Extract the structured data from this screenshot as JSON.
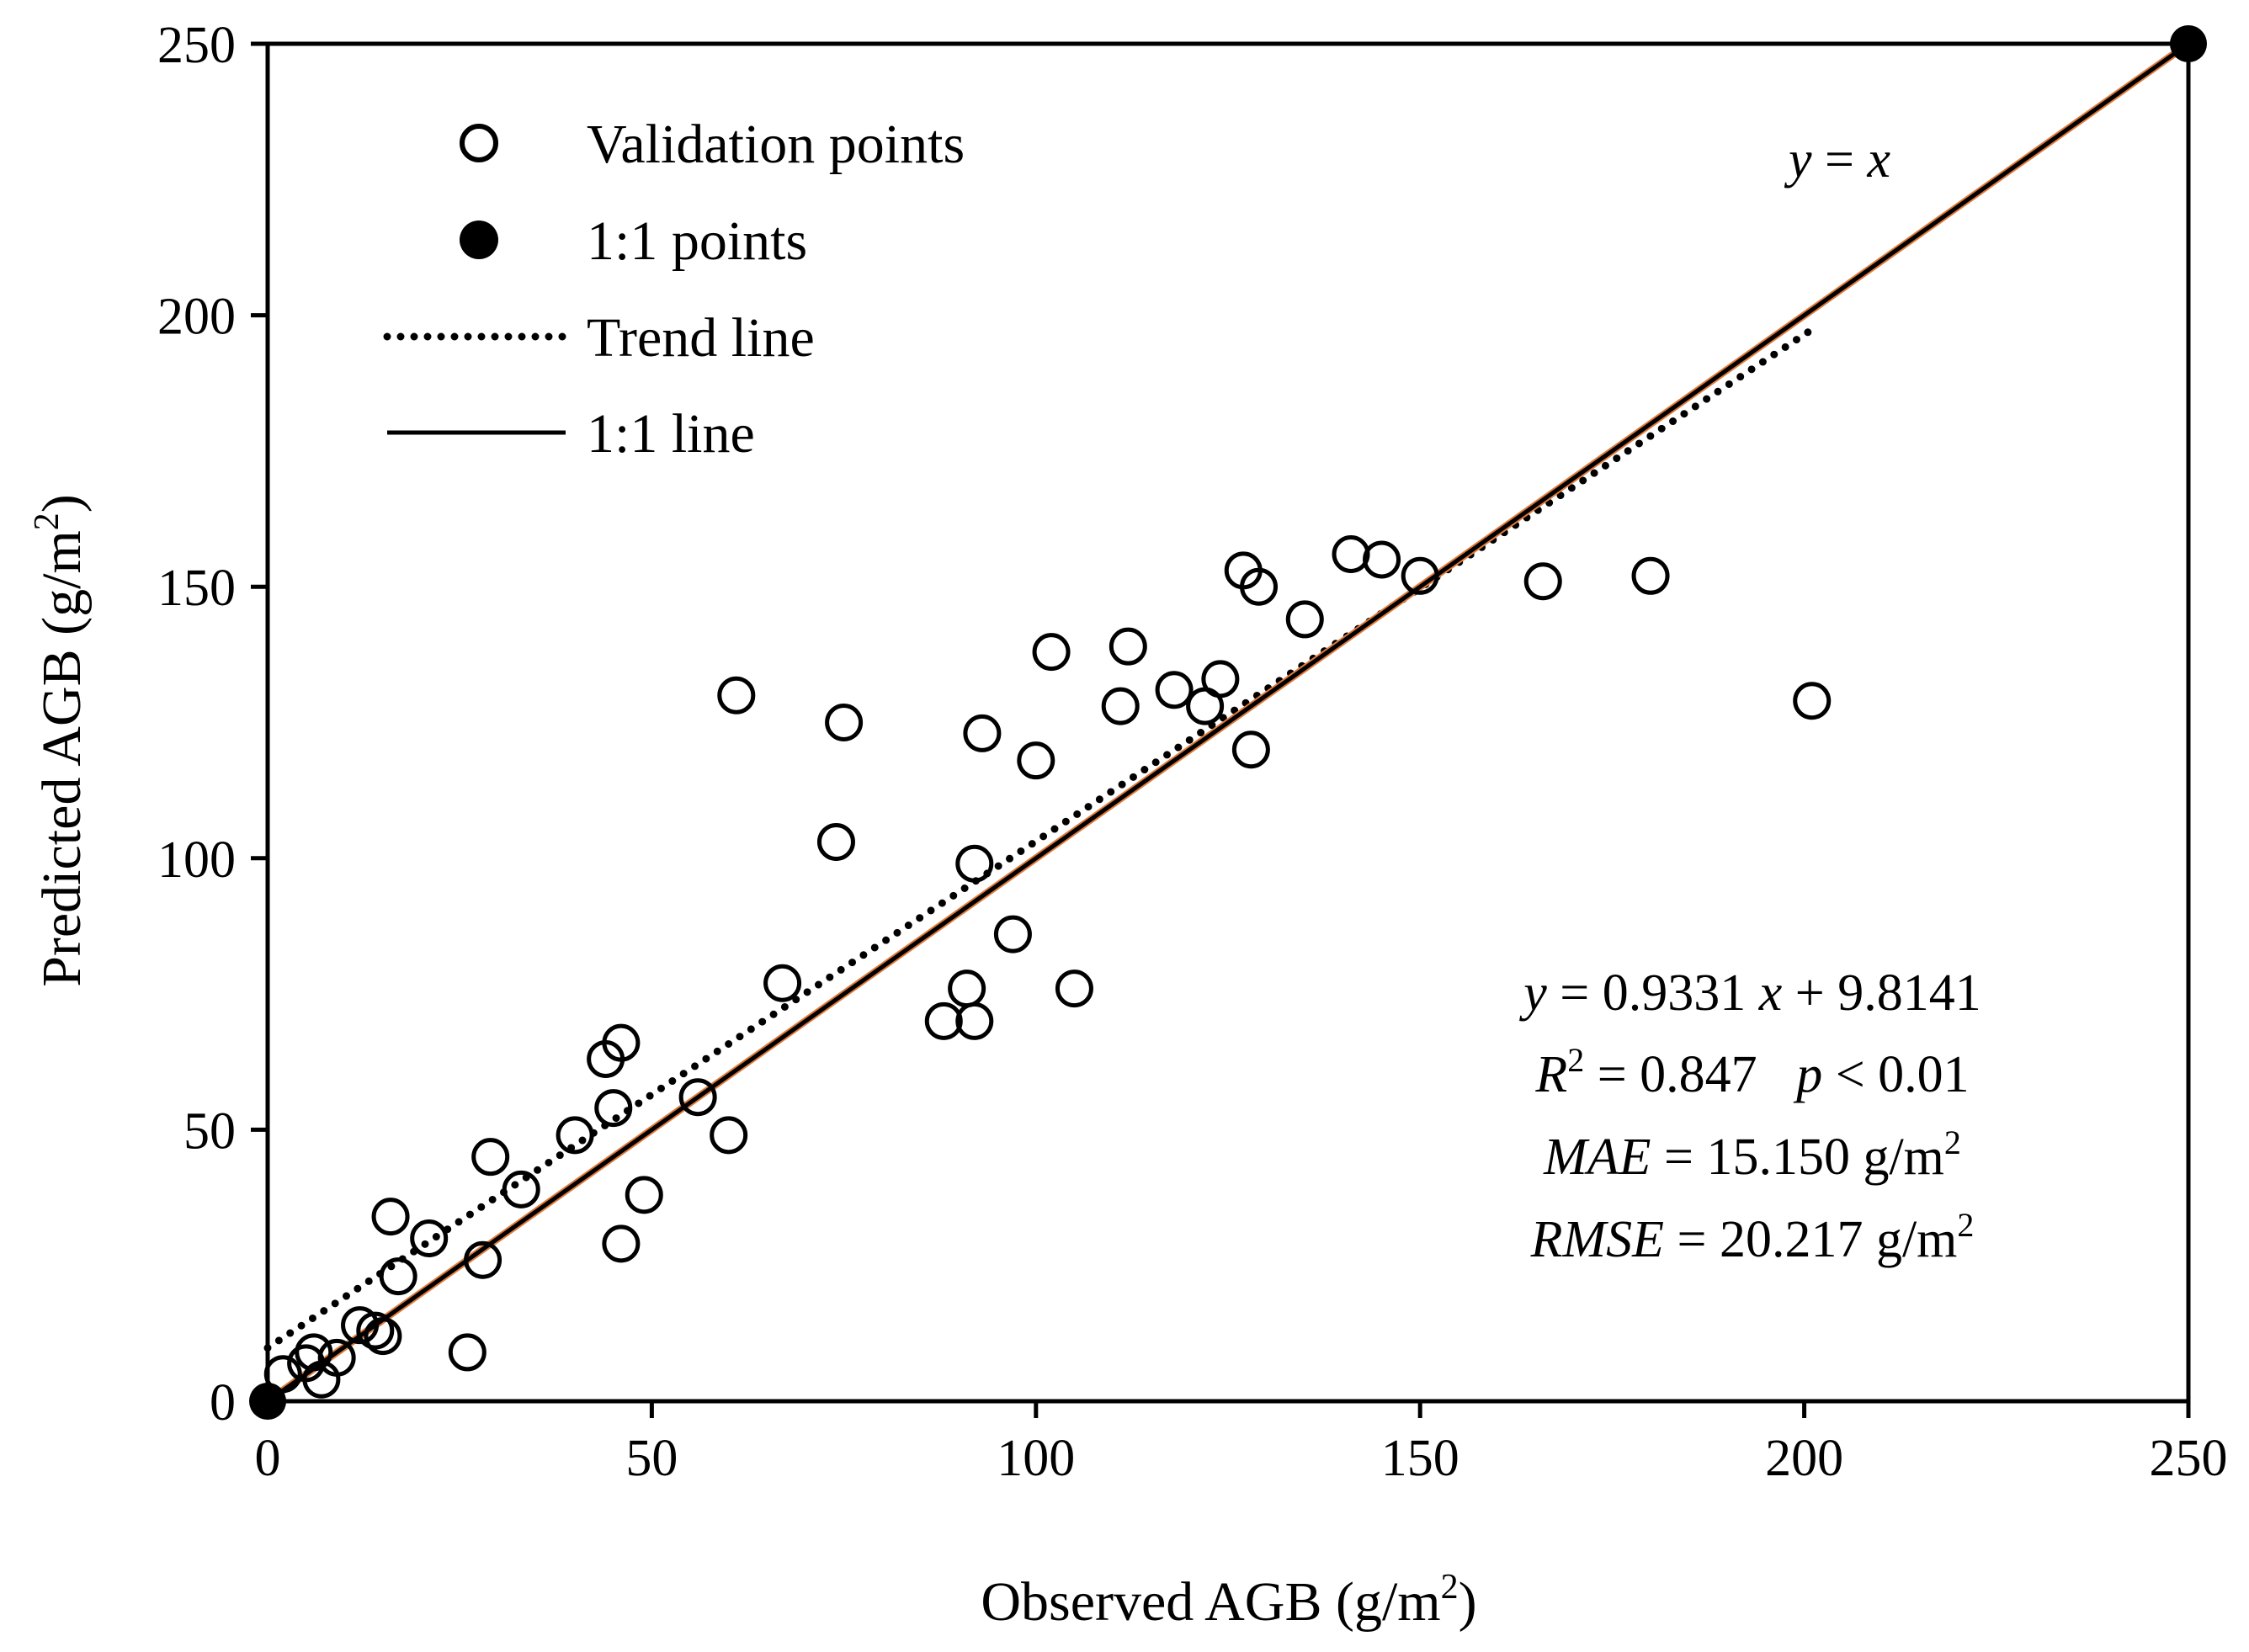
{
  "chart_data": {
    "type": "scatter",
    "title": "",
    "xlabel": "Observed AGB (g/m",
    "xlabel_sup": "2",
    "xlabel_end": ")",
    "ylabel": "Predicted AGB (g/m",
    "ylabel_sup": "2",
    "ylabel_end": ")",
    "xlim": [
      0,
      250
    ],
    "ylim": [
      0,
      250
    ],
    "xticks": [
      0,
      50,
      100,
      150,
      200,
      250
    ],
    "yticks": [
      0,
      50,
      100,
      150,
      200,
      250
    ],
    "grid": false,
    "legend_position": "top-left",
    "legend": [
      {
        "label": "Validation points",
        "marker": "open-circle"
      },
      {
        "label": "1:1 points",
        "marker": "filled-circle"
      },
      {
        "label": "Trend line",
        "marker": "dotted-line"
      },
      {
        "label": "1:1 line",
        "marker": "solid-line"
      }
    ],
    "series": [
      {
        "name": "Validation points",
        "marker": "open-circle",
        "points": [
          [
            2,
            5
          ],
          [
            5,
            7
          ],
          [
            6,
            9
          ],
          [
            7,
            4
          ],
          [
            9,
            8
          ],
          [
            12,
            14
          ],
          [
            14,
            13
          ],
          [
            15,
            12
          ],
          [
            16,
            34
          ],
          [
            17,
            23
          ],
          [
            21,
            30
          ],
          [
            26,
            9
          ],
          [
            28,
            26
          ],
          [
            29,
            45
          ],
          [
            33,
            39
          ],
          [
            40,
            49
          ],
          [
            44,
            63
          ],
          [
            45,
            54
          ],
          [
            46,
            66
          ],
          [
            46,
            29
          ],
          [
            49,
            38
          ],
          [
            56,
            56
          ],
          [
            60,
            49
          ],
          [
            61,
            130
          ],
          [
            67,
            77
          ],
          [
            74,
            103
          ],
          [
            75,
            125
          ],
          [
            88,
            70
          ],
          [
            91,
            76
          ],
          [
            92,
            99
          ],
          [
            92,
            70
          ],
          [
            93,
            123
          ],
          [
            97,
            86
          ],
          [
            100,
            118
          ],
          [
            102,
            138
          ],
          [
            105,
            76
          ],
          [
            111,
            128
          ],
          [
            112,
            139
          ],
          [
            118,
            131
          ],
          [
            122,
            128
          ],
          [
            124,
            133
          ],
          [
            127,
            153
          ],
          [
            128,
            120
          ],
          [
            129,
            150
          ],
          [
            135,
            144
          ],
          [
            141,
            156
          ],
          [
            145,
            155
          ],
          [
            150,
            152
          ],
          [
            166,
            151
          ],
          [
            180,
            152
          ],
          [
            201,
            129
          ]
        ]
      },
      {
        "name": "1:1 points",
        "marker": "filled-circle",
        "points": [
          [
            0,
            0
          ],
          [
            250,
            250
          ]
        ]
      }
    ],
    "lines": [
      {
        "name": "Trend line",
        "style": "dotted",
        "slope": 0.9331,
        "intercept": 9.8141,
        "x_range": [
          0,
          201
        ]
      },
      {
        "name": "1:1 line",
        "style": "solid",
        "slope": 1,
        "intercept": 0,
        "x_range": [
          0,
          250
        ]
      }
    ],
    "annotations": {
      "identity_label": {
        "y": "y",
        "eq": " = ",
        "x": "x"
      },
      "equation": {
        "y": "y",
        "mid": " = 0.9331 ",
        "x": "x",
        "rest": " + 9.8141"
      },
      "r2": {
        "r": "R",
        "sup": "2",
        "rest": " = 0.847   ",
        "p": "p",
        "p_rest": " < 0.01"
      },
      "mae": {
        "name": "MAE",
        "rest": " = 15.150 g/m",
        "sup": "2"
      },
      "rmse": {
        "name": "RMSE",
        "rest": " = 20.217 g/m",
        "sup": "2"
      }
    },
    "colors": {
      "marker": "#000000",
      "identity_line_accent": "#e07a3a"
    }
  }
}
